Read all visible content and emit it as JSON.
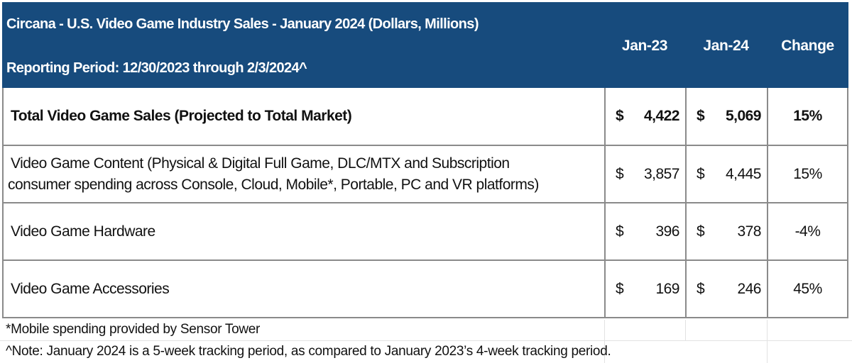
{
  "header": {
    "title": "Circana - U.S. Video Game Industry Sales - January 2024 (Dollars, Millions)",
    "period": "Reporting Period: 12/30/2023 through 2/3/2024^",
    "columns": [
      "Jan-23",
      "Jan-24",
      "Change"
    ]
  },
  "chart_data": {
    "type": "table",
    "title": "Circana - U.S. Video Game Industry Sales - January 2024 (Dollars, Millions)",
    "columns": [
      "Jan-23",
      "Jan-24",
      "Change"
    ],
    "currency": "$",
    "rows": [
      {
        "label": "Total Video Game Sales (Projected to Total Market)",
        "jan23": "4,422",
        "jan24": "5,069",
        "change": "15%",
        "bold": true
      },
      {
        "label_line1": "Video Game Content (Physical & Digital Full Game, DLC/MTX and Subscription",
        "label_line2": "consumer spending across Console, Cloud, Mobile*, Portable, PC and VR platforms)",
        "jan23": "3,857",
        "jan24": "4,445",
        "change": "15%"
      },
      {
        "label": "Video Game Hardware",
        "jan23": "396",
        "jan24": "378",
        "change": "-4%"
      },
      {
        "label": "Video Game Accessories",
        "jan23": "169",
        "jan24": "246",
        "change": "45%"
      }
    ]
  },
  "footnotes": [
    "*Mobile spending provided by Sensor Tower",
    "^Note: January 2024 is a 5-week tracking period, as compared to January 2023’s 4-week tracking period."
  ],
  "colors": {
    "header_bg": "#174b7d",
    "header_text": "#ffffff",
    "border": "#8a8a8a"
  }
}
